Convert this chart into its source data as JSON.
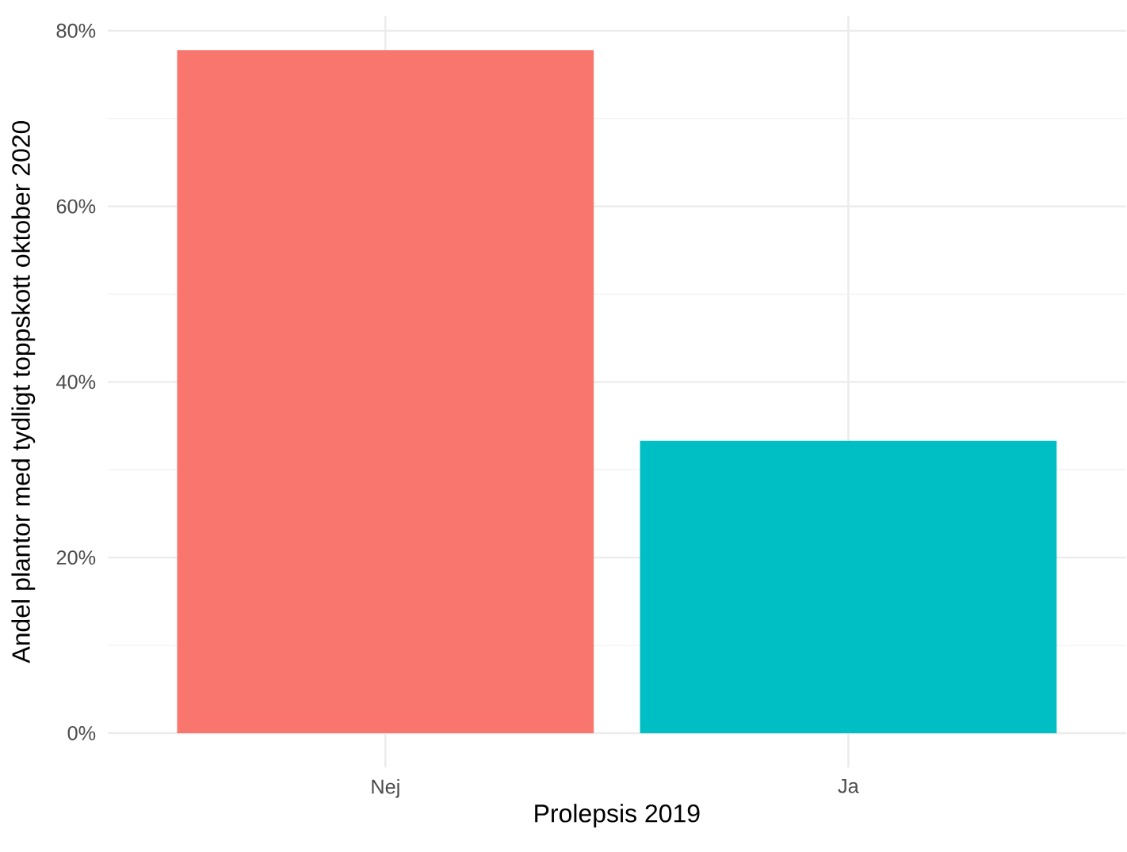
{
  "chart_data": {
    "type": "bar",
    "xlabel": "Prolepsis 2019",
    "ylabel": "Andel plantor med tydligt toppskott oktober 2020",
    "categories": [
      "Nej",
      "Ja"
    ],
    "values": [
      77.8,
      33.3
    ],
    "colors": [
      "#f8766d",
      "#00bfc4"
    ],
    "ylim": [
      -3.9,
      81.7
    ],
    "yticks": [
      {
        "value": 0,
        "label": "0%"
      },
      {
        "value": 20,
        "label": "20%"
      },
      {
        "value": 40,
        "label": "40%"
      },
      {
        "value": 60,
        "label": "60%"
      },
      {
        "value": 80,
        "label": "80%"
      }
    ],
    "grid": true
  }
}
